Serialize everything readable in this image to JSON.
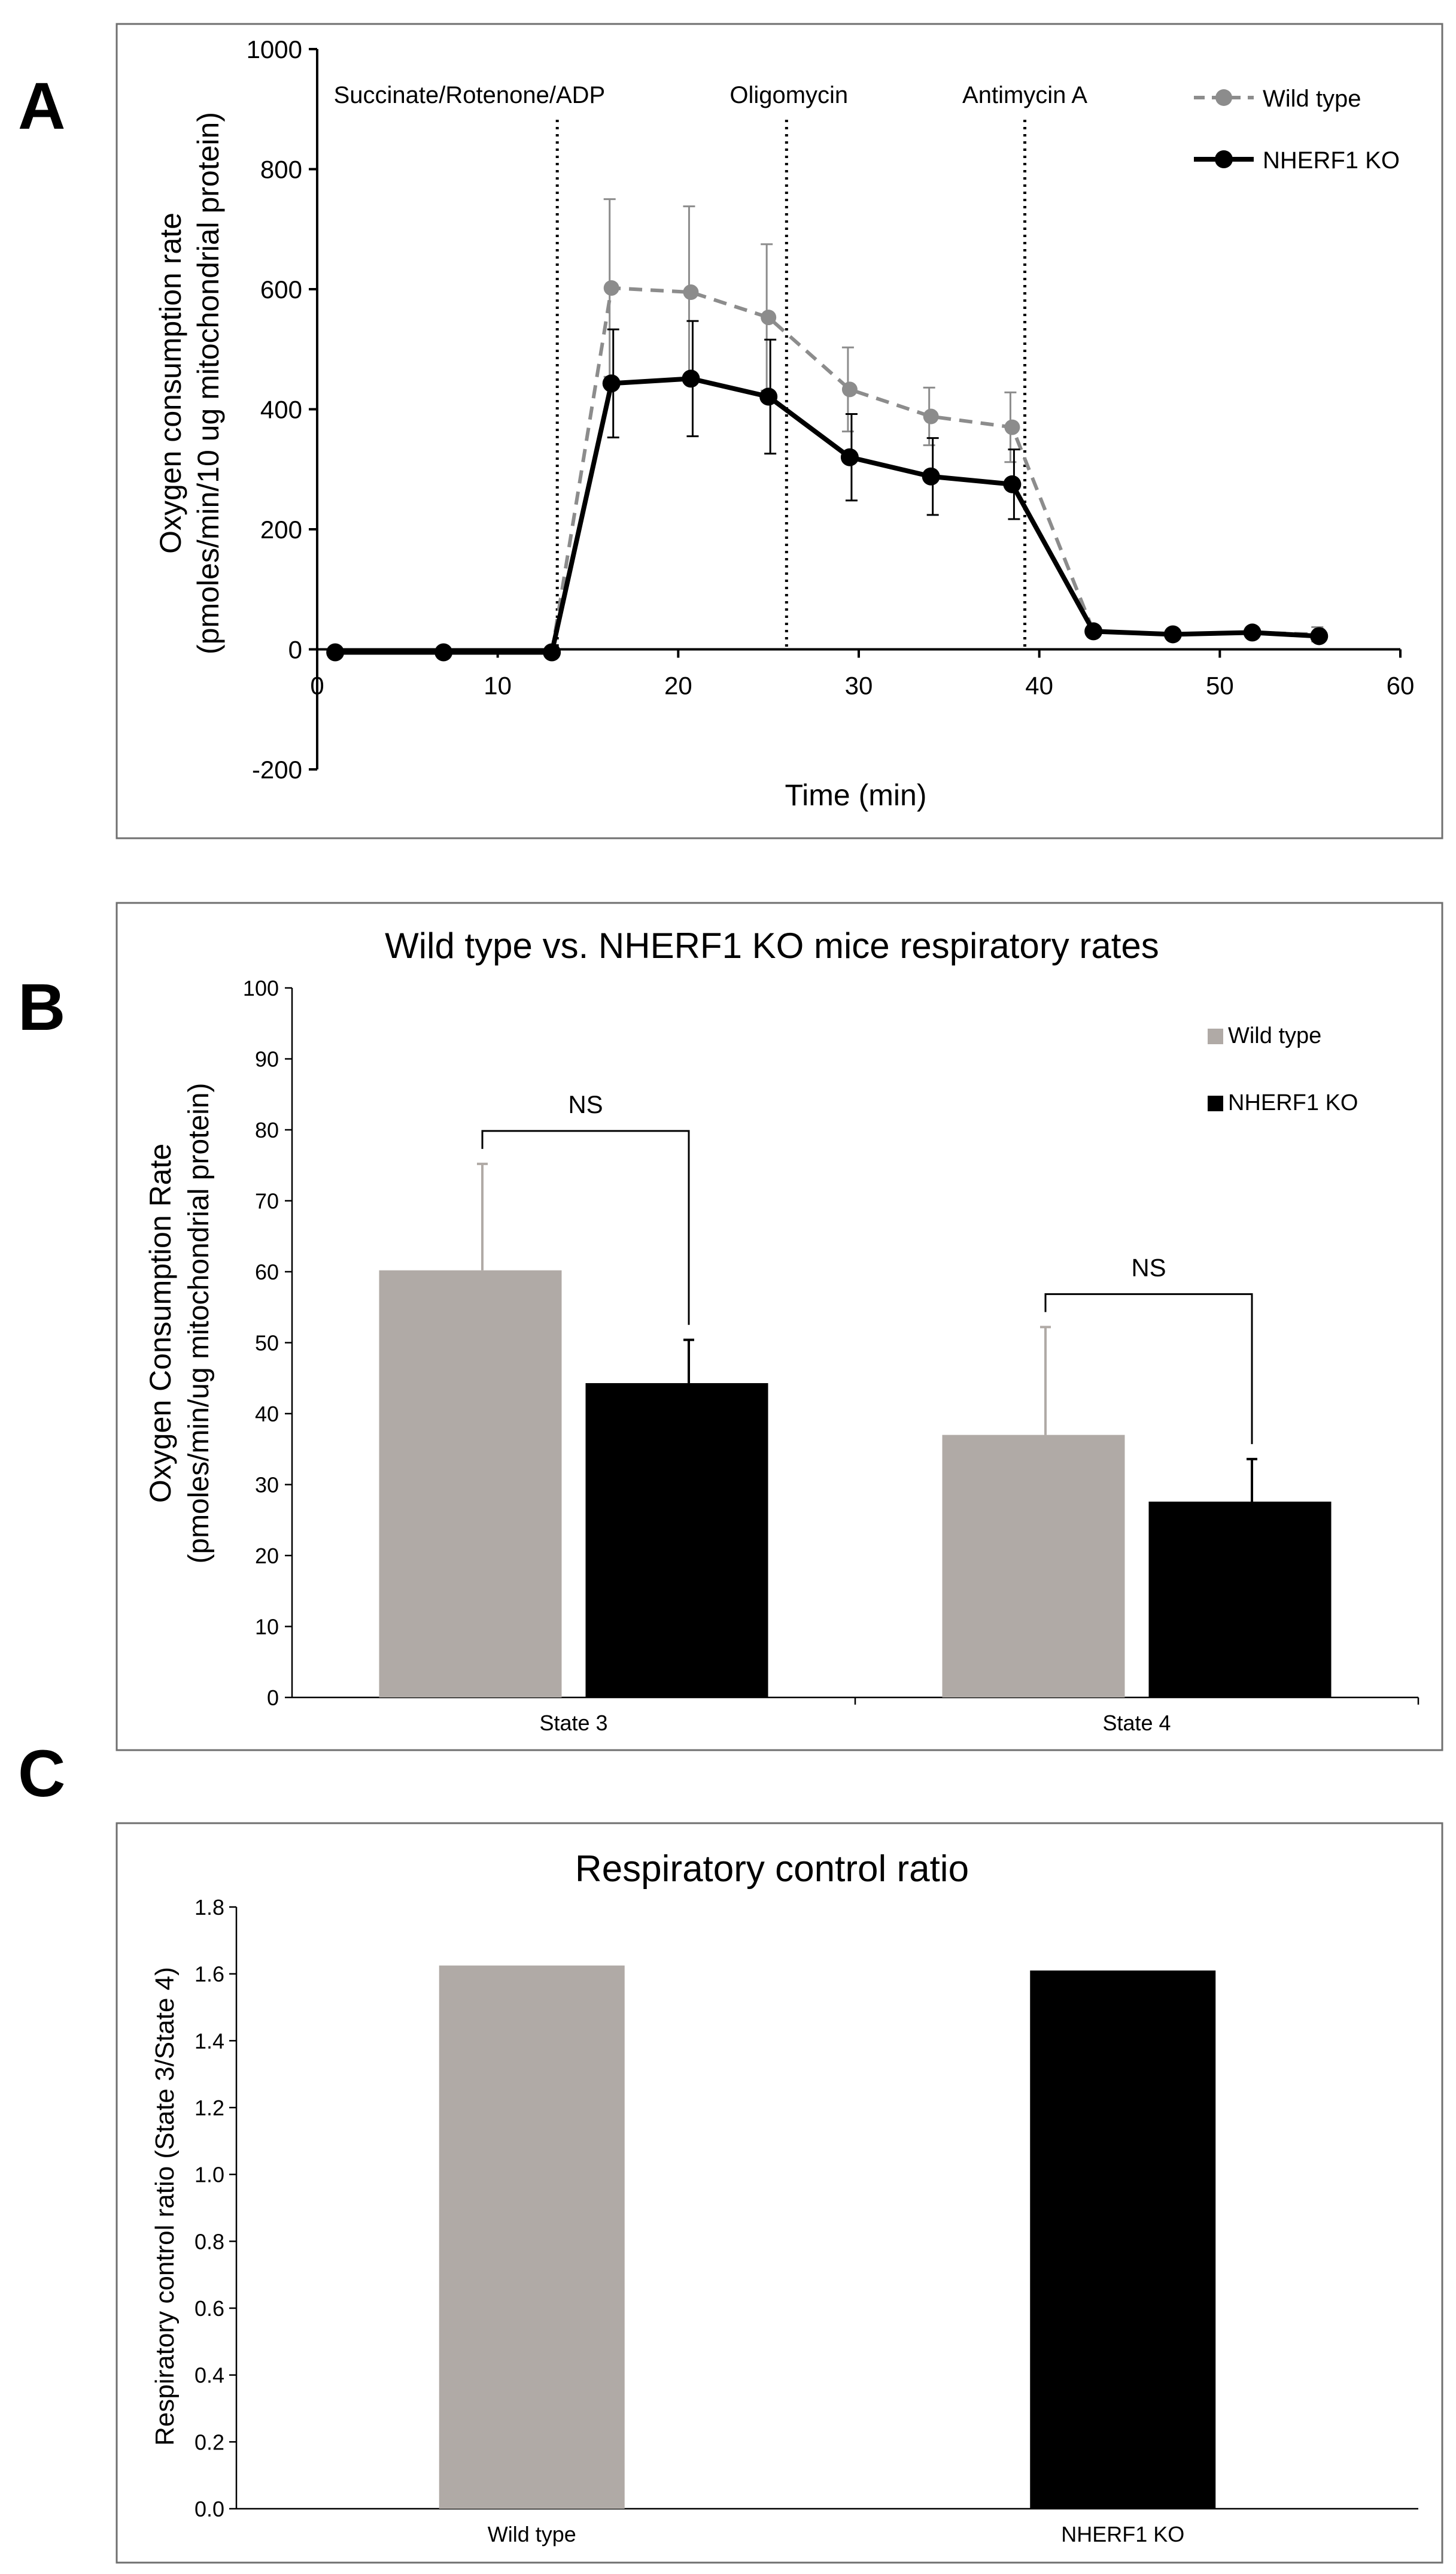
{
  "panel_labels": [
    "A",
    "B",
    "C"
  ],
  "chart_data": [
    {
      "type": "line",
      "title": "",
      "xlabel": "Time (min)",
      "ylabel_line1": "Oxygen consumption rate",
      "ylabel_line2": "(pmoles/min/10 ug mitochondrial protein)",
      "xlim": [
        0,
        60
      ],
      "ylim": [
        -200,
        1000
      ],
      "xticks": [
        0,
        10,
        20,
        30,
        40,
        50,
        60
      ],
      "yticks": [
        -200,
        0,
        200,
        400,
        600,
        800,
        1000
      ],
      "injections": [
        {
          "x": 13.3,
          "label": "Succinate/Rotenone/ADP"
        },
        {
          "x": 26,
          "label": "Oligomycin"
        },
        {
          "x": 39.2,
          "label": "Antimycin A"
        }
      ],
      "series": [
        {
          "name": "Wild type",
          "color": "#8c8c8c",
          "style": "dashed",
          "x": [
            1,
            7,
            13,
            16.3,
            20.7,
            25,
            29.5,
            34,
            38.5,
            43,
            47.4,
            51.8,
            55.5
          ],
          "values": [
            -5,
            -5,
            -5,
            602,
            595,
            553,
            433,
            388,
            370,
            30,
            25,
            28,
            25
          ],
          "errors": [
            0,
            0,
            0,
            148,
            143,
            122,
            70,
            48,
            58,
            0,
            0,
            0,
            12
          ]
        },
        {
          "name": "NHERF1 KO",
          "color": "#000000",
          "style": "solid",
          "x": [
            1,
            7,
            13,
            16.3,
            20.7,
            25,
            29.5,
            34,
            38.5,
            43,
            47.4,
            51.8,
            55.5
          ],
          "values": [
            -5,
            -5,
            -5,
            443,
            451,
            421,
            320,
            288,
            275,
            30,
            25,
            28,
            22
          ],
          "errors": [
            0,
            0,
            0,
            90,
            96,
            95,
            72,
            64,
            58,
            0,
            0,
            0,
            0
          ]
        }
      ]
    },
    {
      "type": "bar",
      "title": "Wild type vs. NHERF1 KO mice respiratory rates",
      "ylabel_line1": "Oxygen Consumption Rate",
      "ylabel_line2": "(pmoles/min/ug mitochondrial protein)",
      "categories": [
        "State 3",
        "State 4"
      ],
      "ylim": [
        0,
        100
      ],
      "yticks": [
        0,
        10,
        20,
        30,
        40,
        50,
        60,
        70,
        80,
        90,
        100
      ],
      "significance": [
        "NS",
        "NS"
      ],
      "series": [
        {
          "name": "Wild type",
          "color": "#b0aaa6",
          "values": [
            60.2,
            37.0
          ],
          "errors": [
            15.0,
            15.2
          ]
        },
        {
          "name": "NHERF1 KO",
          "color": "#000000",
          "values": [
            44.3,
            27.6
          ],
          "errors": [
            6.1,
            6.0
          ]
        }
      ]
    },
    {
      "type": "bar",
      "title": "Respiratory control ratio",
      "ylabel": "Respiratory control ratio (State 3/State 4)",
      "categories": [
        "Wild type",
        "NHERF1 KO"
      ],
      "ylim": [
        0,
        1.8
      ],
      "yticks": [
        "0.0",
        "0.2",
        "0.4",
        "0.6",
        "0.8",
        "1.0",
        "1.2",
        "1.4",
        "1.6",
        "1.8"
      ],
      "values": [
        1.625,
        1.61
      ],
      "colors": [
        "#b0aaa6",
        "#000000"
      ]
    }
  ]
}
